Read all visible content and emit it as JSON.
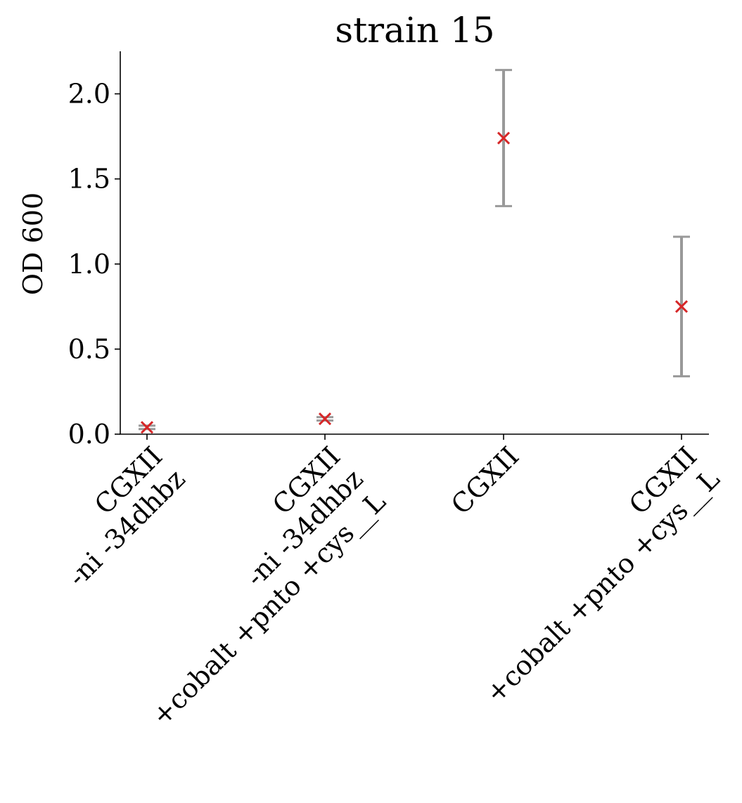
{
  "chart_data": {
    "type": "scatter",
    "title": "strain 15",
    "xlabel": "",
    "ylabel": "OD 600",
    "ylim": [
      0,
      2.25
    ],
    "yticks": [
      "0.0",
      "0.5",
      "1.0",
      "1.5",
      "2.0"
    ],
    "grid": false,
    "categories": [
      [
        "CGXII",
        "-ni -34dhbz"
      ],
      [
        "CGXII",
        "-ni -34dhbz",
        "+cobalt +pnto +cys__L"
      ],
      [
        "CGXII"
      ],
      [
        "CGXII",
        "",
        "+cobalt +pnto +cys__L"
      ]
    ],
    "values": [
      0.04,
      0.09,
      1.74,
      0.75
    ],
    "errors": [
      0.01,
      0.01,
      0.4,
      0.41
    ],
    "colors": {
      "marker": "#d62728",
      "errorbar": "#999999",
      "axis": "#000000"
    }
  }
}
